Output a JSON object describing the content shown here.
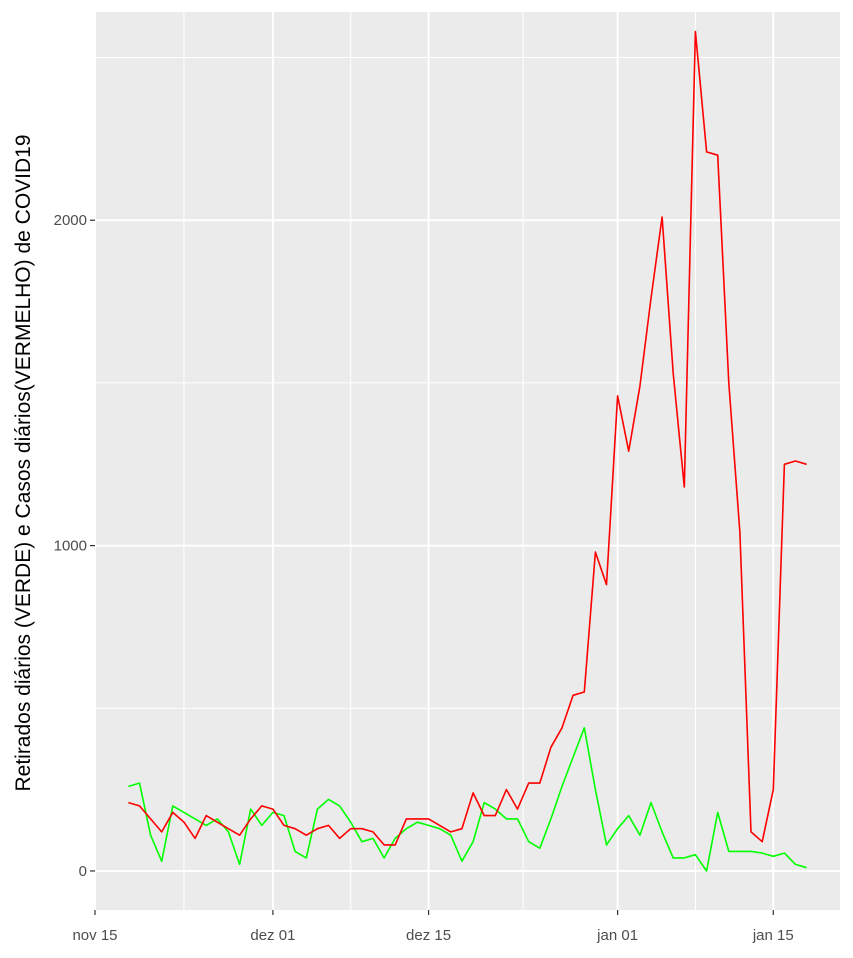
{
  "chart_data": {
    "type": "line",
    "title": "",
    "xlabel": "",
    "ylabel": "Retirados diários (VERDE) e Casos diários(VERMELHO) de COVID19",
    "x_axis": {
      "type": "date",
      "range": [
        "2020-11-15",
        "2021-01-21"
      ],
      "ticks": [
        {
          "value": "2020-11-15",
          "label": "nov 15"
        },
        {
          "value": "2020-12-01",
          "label": "dez 01"
        },
        {
          "value": "2020-12-15",
          "label": "dez 15"
        },
        {
          "value": "2021-01-01",
          "label": "jan 01"
        },
        {
          "value": "2021-01-15",
          "label": "jan 15"
        }
      ]
    },
    "y_axis": {
      "range": [
        -120,
        2640
      ],
      "ticks": [
        0,
        1000,
        2000
      ],
      "minor_ticks": [
        500,
        1500,
        2500
      ]
    },
    "grid": true,
    "legend": "none",
    "background": "#ebebeb",
    "x": [
      "2020-11-18",
      "2020-11-19",
      "2020-11-20",
      "2020-11-21",
      "2020-11-22",
      "2020-11-23",
      "2020-11-24",
      "2020-11-25",
      "2020-11-26",
      "2020-11-27",
      "2020-11-28",
      "2020-11-29",
      "2020-11-30",
      "2020-12-01",
      "2020-12-02",
      "2020-12-03",
      "2020-12-04",
      "2020-12-05",
      "2020-12-06",
      "2020-12-07",
      "2020-12-08",
      "2020-12-09",
      "2020-12-10",
      "2020-12-11",
      "2020-12-12",
      "2020-12-13",
      "2020-12-14",
      "2020-12-15",
      "2020-12-16",
      "2020-12-17",
      "2020-12-18",
      "2020-12-19",
      "2020-12-20",
      "2020-12-21",
      "2020-12-22",
      "2020-12-23",
      "2020-12-24",
      "2020-12-25",
      "2020-12-26",
      "2020-12-27",
      "2020-12-28",
      "2020-12-29",
      "2020-12-30",
      "2020-12-31",
      "2021-01-01",
      "2021-01-02",
      "2021-01-03",
      "2021-01-04",
      "2021-01-05",
      "2021-01-06",
      "2021-01-07",
      "2021-01-08",
      "2021-01-09",
      "2021-01-10",
      "2021-01-11",
      "2021-01-12",
      "2021-01-13",
      "2021-01-14",
      "2021-01-15",
      "2021-01-16",
      "2021-01-17",
      "2021-01-18"
    ],
    "series": [
      {
        "color": "#00ff00",
        "values": [
          260,
          270,
          110,
          30,
          200,
          180,
          160,
          140,
          160,
          120,
          20,
          190,
          140,
          180,
          170,
          60,
          40,
          190,
          220,
          200,
          150,
          90,
          100,
          40,
          100,
          130,
          150,
          140,
          130,
          110,
          30,
          90,
          210,
          190,
          160,
          160,
          90,
          70,
          160,
          260,
          350,
          440,
          250,
          80,
          130,
          170,
          110,
          210,
          120,
          40,
          40,
          50,
          0,
          180,
          60,
          60,
          60,
          55,
          45,
          55,
          20,
          10
        ]
      },
      {
        "color": "#ff0000",
        "values": [
          210,
          200,
          160,
          120,
          180,
          150,
          100,
          170,
          150,
          130,
          110,
          160,
          200,
          190,
          140,
          130,
          110,
          130,
          140,
          100,
          130,
          130,
          120,
          80,
          80,
          160,
          160,
          160,
          140,
          120,
          130,
          240,
          170,
          170,
          250,
          190,
          270,
          270,
          380,
          440,
          540,
          550,
          980,
          880,
          1460,
          1290,
          1490,
          1760,
          2010,
          1530,
          1180,
          2580,
          2210,
          2200,
          1500,
          1040,
          120,
          90,
          250,
          1250,
          1260,
          1250
        ]
      }
    ]
  }
}
